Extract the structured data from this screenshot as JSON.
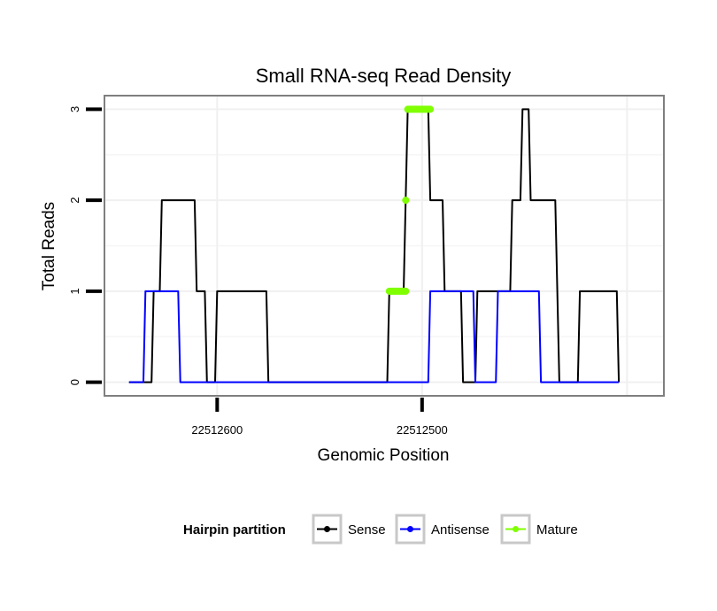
{
  "chart_data": {
    "type": "line",
    "title": "Small RNA-seq Read Density",
    "xlabel": "Genomic Position",
    "ylabel": "Total Reads",
    "x_reversed": true,
    "xlim": [
      22512655,
      22512382
    ],
    "ylim": [
      -0.15,
      3.15
    ],
    "x_ticks": [
      {
        "value": 22512600,
        "label": "22512600"
      },
      {
        "value": 22512500,
        "label": "22512500"
      }
    ],
    "y_ticks": [
      {
        "value": 0,
        "label": "0"
      },
      {
        "value": 1,
        "label": "1"
      },
      {
        "value": 2,
        "label": "2"
      },
      {
        "value": 3,
        "label": "3"
      }
    ],
    "grid": true,
    "legend": {
      "title": "Hairpin partition",
      "position": "bottom",
      "entries": [
        {
          "label": "Sense",
          "color": "#000000"
        },
        {
          "label": "Antisense",
          "color": "#0000ff"
        },
        {
          "label": "Mature",
          "color": "#7fff00"
        }
      ]
    },
    "series": [
      {
        "name": "Sense",
        "color": "#000000",
        "points": [
          [
            22512643,
            0
          ],
          [
            22512632,
            0
          ],
          [
            22512631,
            1
          ],
          [
            22512628,
            1
          ],
          [
            22512627,
            2
          ],
          [
            22512611,
            2
          ],
          [
            22512610,
            1
          ],
          [
            22512606,
            1
          ],
          [
            22512605,
            0
          ],
          [
            22512601,
            0
          ],
          [
            22512600,
            1
          ],
          [
            22512576,
            1
          ],
          [
            22512575,
            0
          ],
          [
            22512517,
            0
          ],
          [
            22512516,
            1
          ],
          [
            22512509,
            1
          ],
          [
            22512508,
            2
          ],
          [
            22512507,
            3
          ],
          [
            22512497,
            3
          ],
          [
            22512496,
            2
          ],
          [
            22512490,
            2
          ],
          [
            22512489,
            1
          ],
          [
            22512481,
            1
          ],
          [
            22512480,
            0
          ],
          [
            22512474,
            0
          ],
          [
            22512473,
            1
          ],
          [
            22512457,
            1
          ],
          [
            22512456,
            2
          ],
          [
            22512452,
            2
          ],
          [
            22512451,
            3
          ],
          [
            22512448,
            3
          ],
          [
            22512447,
            2
          ],
          [
            22512435,
            2
          ],
          [
            22512434,
            1
          ],
          [
            22512433,
            0
          ],
          [
            22512424,
            0
          ],
          [
            22512423,
            1
          ],
          [
            22512405,
            1
          ],
          [
            22512404,
            0
          ]
        ]
      },
      {
        "name": "Antisense",
        "color": "#0000ff",
        "points": [
          [
            22512643,
            0
          ],
          [
            22512636,
            0
          ],
          [
            22512635,
            1
          ],
          [
            22512619,
            1
          ],
          [
            22512618,
            0
          ],
          [
            22512497,
            0
          ],
          [
            22512496,
            1
          ],
          [
            22512475,
            1
          ],
          [
            22512474,
            0
          ],
          [
            22512464,
            0
          ],
          [
            22512463,
            1
          ],
          [
            22512443,
            1
          ],
          [
            22512442,
            0
          ],
          [
            22512404,
            0
          ]
        ]
      },
      {
        "name": "Mature",
        "color": "#7fff00",
        "segments": [
          [
            [
              22512516,
              1
            ],
            [
              22512508,
              1
            ]
          ],
          [
            [
              22512508,
              2
            ],
            [
              22512508,
              2
            ]
          ],
          [
            [
              22512507,
              3
            ],
            [
              22512496,
              3
            ]
          ]
        ]
      }
    ]
  }
}
